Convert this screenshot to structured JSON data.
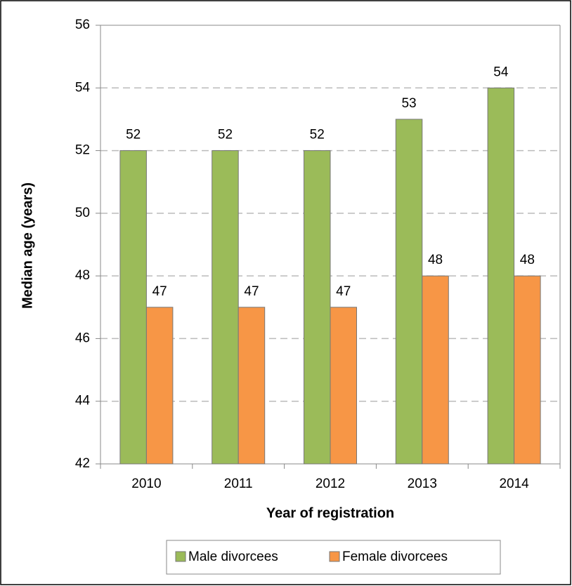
{
  "chart_data": {
    "type": "bar",
    "x_label": "Year of registration",
    "y_label": "Median age (years)",
    "categories": [
      "2010",
      "2011",
      "2012",
      "2013",
      "2014"
    ],
    "series": [
      {
        "name": "Male divorcees",
        "color": "#9bbb59",
        "values": [
          52,
          52,
          52,
          53,
          54
        ]
      },
      {
        "name": "Female divorcees",
        "color": "#f79646",
        "values": [
          47,
          47,
          47,
          48,
          48
        ]
      }
    ],
    "ylim": [
      42,
      56
    ],
    "yticks": [
      42,
      44,
      46,
      48,
      50,
      52,
      54,
      56
    ],
    "grid": true,
    "legend": "bottom"
  }
}
